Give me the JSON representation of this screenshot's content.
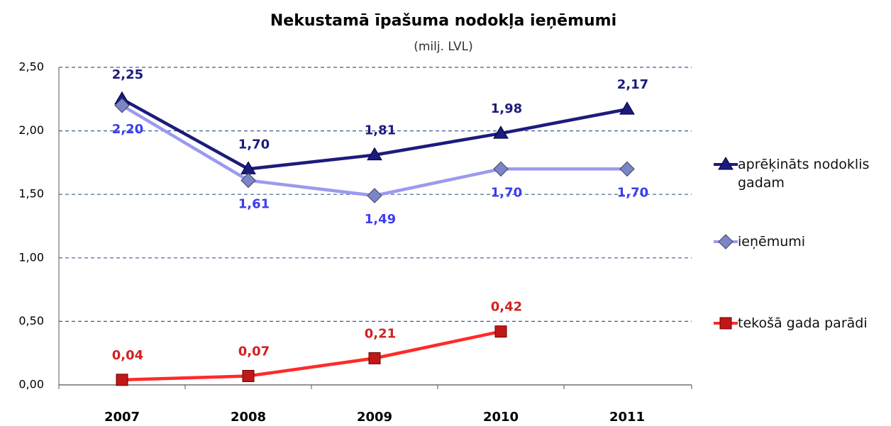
{
  "chart_data": {
    "type": "line",
    "title": "Nekustamā īpašuma nodokļa ieņēmumi",
    "subtitle": "(milj. LVL)",
    "categories": [
      "2007",
      "2008",
      "2009",
      "2010",
      "2011"
    ],
    "series": [
      {
        "name": "aprēķināts nodoklis gadam",
        "color": "#1c1c7c",
        "label_color": "#1c1c7c",
        "marker": "triangle",
        "label_position": "above",
        "values": [
          2.25,
          1.7,
          1.81,
          1.98,
          2.17
        ],
        "value_labels": [
          "2,25",
          "1,70",
          "1,81",
          "1,98",
          "2,17"
        ]
      },
      {
        "name": "ieņēmumi",
        "color": "#9a9af0",
        "label_color": "#3c3cf0",
        "marker": "diamond",
        "label_position": "below",
        "values": [
          2.2,
          1.61,
          1.49,
          1.7,
          1.7
        ],
        "value_labels": [
          "2,20",
          "1,61",
          "1,49",
          "1,70",
          "1,70"
        ]
      },
      {
        "name": "tekošā gada parādi",
        "color": "#ff2a2a",
        "label_color": "#d42020",
        "marker": "square",
        "label_position": "above",
        "values": [
          0.04,
          0.07,
          0.21,
          0.42,
          null
        ],
        "value_labels": [
          "0,04",
          "0,07",
          "0,21",
          "0,42",
          null
        ]
      }
    ],
    "ylim": [
      0,
      2.5
    ],
    "yticks": [
      {
        "value": 0,
        "label": "0,00"
      },
      {
        "value": 0.5,
        "label": "0,50"
      },
      {
        "value": 1,
        "label": "1,00"
      },
      {
        "value": 1.5,
        "label": "1,50"
      },
      {
        "value": 2,
        "label": "2,00"
      },
      {
        "value": 2.5,
        "label": "2,50"
      }
    ],
    "grid": true,
    "legend": "right"
  }
}
